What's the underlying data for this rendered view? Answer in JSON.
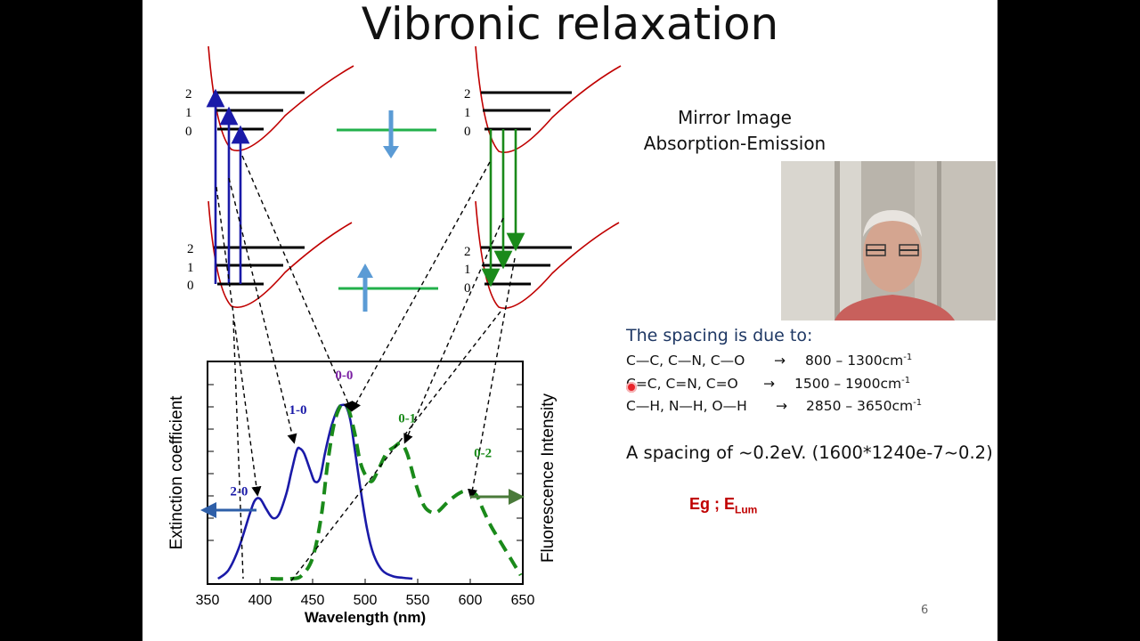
{
  "slide": {
    "title": "Vibronic relaxation",
    "page_number": "6"
  },
  "levels": {
    "labels": [
      "2",
      "1",
      "0"
    ]
  },
  "mirror": {
    "line1": "Mirror Image",
    "line2": "Absorption-Emission"
  },
  "spacing": {
    "heading": "The spacing is due to:",
    "bonds": [
      {
        "groups": "C—C, C—N, C—O",
        "arrow": "→",
        "range": "800 – 1300cm",
        "sup": "-1"
      },
      {
        "groups": "C=C, C=N, C=O",
        "arrow": "→",
        "range": "1500 – 1900cm",
        "sup": "-1"
      },
      {
        "groups": "C—H, N—H, O—H",
        "arrow": "→",
        "range": "2850 – 3650cm",
        "sup": "-1"
      }
    ],
    "example": "A spacing of ~0.2eV. (1600*1240e-7~0.2)"
  },
  "energy": {
    "text": "Eg ; E",
    "sub": "Lum"
  },
  "colors": {
    "absorption": "#1a1aa8",
    "emission": "#1a8a1a",
    "potential": "#c00000",
    "spin_bar": "#22b04b",
    "spin_arrow": "#5b9bd5",
    "peak_label_00": "#7a1fa2",
    "heading": "#1f3864",
    "eg": "#c00000"
  },
  "chart_data": {
    "type": "line",
    "xlabel": "Wavelength (nm)",
    "ylabel": "Extinction coefficient",
    "ylabel_right": "Fluorescence Intensity",
    "xlim": [
      350,
      650
    ],
    "x_ticks": [
      "350",
      "400",
      "450",
      "500",
      "550",
      "600",
      "650"
    ],
    "ylim": [
      0,
      1
    ],
    "series": [
      {
        "style": "solid",
        "x": [
          360,
          370,
          380,
          390,
          395,
          400,
          406,
          412,
          418,
          425,
          430,
          435,
          438,
          442,
          448,
          452,
          457,
          462,
          468,
          474,
          478,
          482,
          486,
          490,
          496,
          502,
          508,
          516,
          526,
          536,
          545
        ],
        "y": [
          0.0,
          0.05,
          0.18,
          0.37,
          0.45,
          0.46,
          0.4,
          0.35,
          0.37,
          0.49,
          0.62,
          0.74,
          0.75,
          0.72,
          0.62,
          0.56,
          0.58,
          0.73,
          0.88,
          0.98,
          1.0,
          0.99,
          0.91,
          0.75,
          0.5,
          0.28,
          0.14,
          0.05,
          0.015,
          0.005,
          0.0
        ]
      },
      {
        "style": "dashed",
        "x": [
          410,
          430,
          440,
          450,
          458,
          464,
          470,
          476,
          480,
          484,
          490,
          495,
          500,
          506,
          512,
          520,
          528,
          534,
          540,
          548,
          556,
          564,
          570,
          580,
          592,
          600,
          606,
          612,
          620,
          630,
          640,
          648
        ],
        "y": [
          0.0,
          0.0,
          0.02,
          0.12,
          0.35,
          0.65,
          0.88,
          0.99,
          1.0,
          0.98,
          0.84,
          0.68,
          0.6,
          0.56,
          0.62,
          0.72,
          0.76,
          0.78,
          0.72,
          0.55,
          0.42,
          0.38,
          0.39,
          0.45,
          0.5,
          0.5,
          0.48,
          0.4,
          0.3,
          0.2,
          0.1,
          0.02
        ]
      }
    ],
    "annotations": [
      {
        "text": "0-0",
        "x": 480,
        "y": 1.15,
        "color": "#7a1fa2"
      },
      {
        "text": "1-0",
        "x": 436,
        "y": 0.95,
        "color": "#1a1aa8"
      },
      {
        "text": "2-0",
        "x": 380,
        "y": 0.48,
        "color": "#1a1aa8"
      },
      {
        "text": "0-1",
        "x": 540,
        "y": 0.9,
        "color": "#1a8a1a"
      },
      {
        "text": "0-2",
        "x": 612,
        "y": 0.7,
        "color": "#1a8a1a"
      }
    ]
  }
}
